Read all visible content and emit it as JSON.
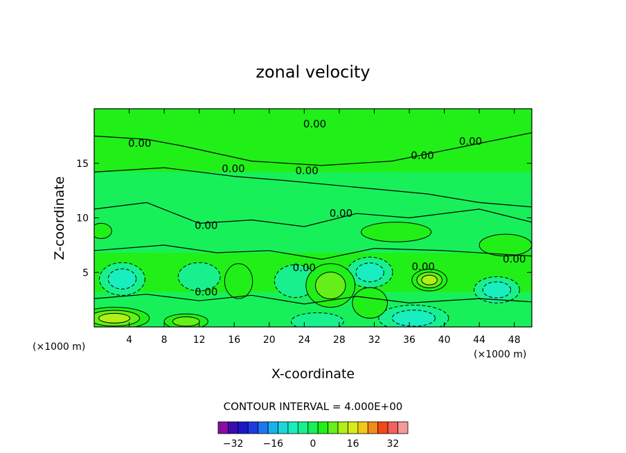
{
  "chart_data": {
    "type": "contour",
    "title": "zonal velocity",
    "xlabel": "X-coordinate",
    "ylabel": "Z-coordinate",
    "x_unit_label": "(×1000 m)",
    "z_unit_label": "(×1000 m)",
    "xlim": [
      0,
      50
    ],
    "ylim": [
      0,
      20
    ],
    "x_ticks": [
      4,
      8,
      12,
      16,
      20,
      24,
      28,
      32,
      36,
      40,
      44,
      48
    ],
    "y_ticks": [
      5,
      10,
      15
    ],
    "contour_interval_text": "CONTOUR INTERVAL = 4.000E+00",
    "contour_labels": [
      {
        "text": "0.00",
        "x": 5.2,
        "z": 16.5
      },
      {
        "text": "0.00",
        "x": 15.9,
        "z": 14.2
      },
      {
        "text": "0.00",
        "x": 24.3,
        "z": 14.0
      },
      {
        "text": "0.00",
        "x": 25.2,
        "z": 18.3
      },
      {
        "text": "0.00",
        "x": 37.5,
        "z": 15.4
      },
      {
        "text": "0.00",
        "x": 43.0,
        "z": 16.7
      },
      {
        "text": "0.00",
        "x": 28.2,
        "z": 10.1
      },
      {
        "text": "0.00",
        "x": 12.8,
        "z": 9.0
      },
      {
        "text": "0.00",
        "x": 24.0,
        "z": 5.1
      },
      {
        "text": "0.00",
        "x": 37.6,
        "z": 5.2
      },
      {
        "text": "0.00",
        "x": 48.0,
        "z": 5.9
      },
      {
        "text": "0.00",
        "x": 12.8,
        "z": 2.9
      }
    ],
    "features": [
      {
        "kind": "negative",
        "x": 3.2,
        "z": 4.4,
        "rx": 2.6,
        "rz": 1.5,
        "level": -8
      },
      {
        "kind": "negative",
        "x": 12.0,
        "z": 4.6,
        "rx": 2.4,
        "rz": 1.3,
        "level": -4
      },
      {
        "kind": "negative",
        "x": 23.0,
        "z": 4.2,
        "rx": 2.4,
        "rz": 1.5,
        "level": -4
      },
      {
        "kind": "negative",
        "x": 31.5,
        "z": 5.0,
        "rx": 2.6,
        "rz": 1.4,
        "level": -8
      },
      {
        "kind": "negative",
        "x": 36.5,
        "z": 0.8,
        "rx": 4.0,
        "rz": 1.2,
        "level": -8
      },
      {
        "kind": "negative",
        "x": 46.0,
        "z": 3.4,
        "rx": 2.6,
        "rz": 1.2,
        "level": -8
      },
      {
        "kind": "negative",
        "x": 25.5,
        "z": 0.5,
        "rx": 3.0,
        "rz": 0.8,
        "level": -4
      },
      {
        "kind": "positive",
        "x": 38.3,
        "z": 4.3,
        "rx": 2.0,
        "rz": 1.0,
        "level": 12
      },
      {
        "kind": "positive",
        "x": 2.3,
        "z": 0.8,
        "rx": 4.0,
        "rz": 1.0,
        "level": 12
      },
      {
        "kind": "positive",
        "x": 10.5,
        "z": 0.5,
        "rx": 2.5,
        "rz": 0.7,
        "level": 8
      },
      {
        "kind": "positive",
        "x": 27.0,
        "z": 3.8,
        "rx": 2.8,
        "rz": 2.0,
        "level": 8
      },
      {
        "kind": "positive",
        "x": 16.5,
        "z": 4.2,
        "rx": 1.6,
        "rz": 1.6,
        "level": 4
      },
      {
        "kind": "positive",
        "x": 34.5,
        "z": 8.7,
        "rx": 4.0,
        "rz": 0.9,
        "level": 4
      },
      {
        "kind": "positive",
        "x": 0.8,
        "z": 8.8,
        "rx": 1.2,
        "rz": 0.7,
        "level": 4
      },
      {
        "kind": "positive",
        "x": 31.5,
        "z": 2.2,
        "rx": 2.0,
        "rz": 1.4,
        "level": 4
      },
      {
        "kind": "positive",
        "x": 47.0,
        "z": 7.5,
        "rx": 3.0,
        "rz": 1.0,
        "level": 4
      }
    ],
    "colorbar": {
      "levels": [
        -36,
        -32,
        -28,
        -24,
        -20,
        -16,
        -12,
        -8,
        -4,
        0,
        4,
        8,
        12,
        16,
        20,
        24,
        28,
        32,
        36
      ],
      "tick_labels": [
        "−32",
        "−16",
        "0",
        "16",
        "32"
      ],
      "tick_values": [
        -32,
        -16,
        0,
        16,
        32
      ],
      "colors": [
        "#8a0ca0",
        "#3a0cae",
        "#1b17c8",
        "#1f3ce0",
        "#1c78f0",
        "#1ab0ef",
        "#18d8d8",
        "#18eec0",
        "#18f08e",
        "#18f05a",
        "#20f018",
        "#64f018",
        "#aef018",
        "#d8ec18",
        "#f4c818",
        "#f48a18",
        "#f44818",
        "#f46060",
        "#f49a9a"
      ]
    }
  }
}
